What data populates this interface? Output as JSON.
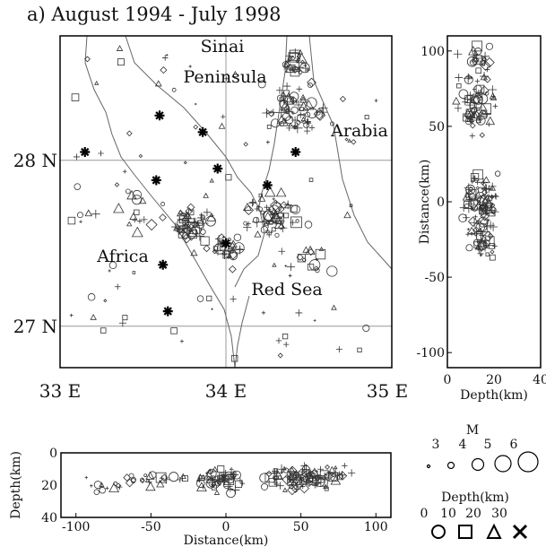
{
  "title": "a) August 1994 - July 1998",
  "chart_data": [
    {
      "type": "scatter",
      "panel": "map",
      "x_ticks": [
        "33 E",
        "34 E",
        "35 E"
      ],
      "y_ticks": [
        "27 N",
        "28 N"
      ],
      "xlim": [
        33.0,
        35.0
      ],
      "ylim": [
        26.75,
        28.75
      ],
      "labels": [
        "Sinai",
        "Peninsula",
        "Arabia",
        "Africa",
        "Red Sea"
      ],
      "stations": [
        {
          "lon": 33.6,
          "lat": 28.27
        },
        {
          "lon": 33.86,
          "lat": 28.17
        },
        {
          "lon": 33.15,
          "lat": 28.05
        },
        {
          "lon": 33.95,
          "lat": 27.95
        },
        {
          "lon": 33.58,
          "lat": 27.88
        },
        {
          "lon": 34.42,
          "lat": 28.05
        },
        {
          "lon": 34.25,
          "lat": 27.85
        },
        {
          "lon": 33.62,
          "lat": 27.37
        },
        {
          "lon": 33.65,
          "lat": 27.09
        },
        {
          "lon": 34.0,
          "lat": 27.5
        }
      ],
      "clusters": [
        {
          "lon": 34.45,
          "lat": 28.3,
          "n": 70,
          "spread": 0.14
        },
        {
          "lon": 34.42,
          "lat": 28.58,
          "n": 30,
          "spread": 0.07
        },
        {
          "lon": 34.28,
          "lat": 27.67,
          "n": 60,
          "spread": 0.12
        },
        {
          "lon": 33.8,
          "lat": 27.62,
          "n": 55,
          "spread": 0.1
        },
        {
          "lon": 34.0,
          "lat": 27.48,
          "n": 30,
          "spread": 0.08
        },
        {
          "lon": 33.45,
          "lat": 27.7,
          "n": 15,
          "spread": 0.15
        },
        {
          "lon": 34.5,
          "lat": 27.4,
          "n": 15,
          "spread": 0.12
        }
      ]
    },
    {
      "type": "scatter",
      "panel": "depth-profile-right",
      "xlabel": "Depth(km)",
      "ylabel": "Distance(km)",
      "x_ticks": [
        "0",
        "20",
        "40"
      ],
      "y_ticks": [
        "-100",
        "-50",
        "0",
        "50",
        "100"
      ],
      "xlim": [
        0,
        40
      ],
      "ylim": [
        -110,
        110
      ],
      "clusters": [
        {
          "x": 13,
          "y": 65,
          "n": 70,
          "sx": 7,
          "sy": 18
        },
        {
          "x": 13,
          "y": 95,
          "n": 20,
          "sx": 5,
          "sy": 8
        },
        {
          "x": 15,
          "y": 0,
          "n": 90,
          "sx": 6,
          "sy": 14
        },
        {
          "x": 15,
          "y": -25,
          "n": 40,
          "sx": 6,
          "sy": 12
        }
      ]
    },
    {
      "type": "scatter",
      "panel": "depth-profile-bottom",
      "xlabel": "Distance(km)",
      "ylabel": "Depth(km)",
      "x_ticks": [
        "-100",
        "-50",
        "0",
        "50",
        "100"
      ],
      "y_ticks": [
        "0",
        "20",
        "40"
      ],
      "xlim": [
        -110,
        110
      ],
      "ylim": [
        0,
        40
      ],
      "clusters": [
        {
          "x": -5,
          "y": 17,
          "n": 60,
          "sx": 12,
          "sy": 6
        },
        {
          "x": 50,
          "y": 16,
          "n": 90,
          "sx": 18,
          "sy": 6
        },
        {
          "x": -50,
          "y": 17,
          "n": 25,
          "sx": 22,
          "sy": 5
        },
        {
          "x": -82,
          "y": 20,
          "n": 10,
          "sx": 8,
          "sy": 4
        },
        {
          "x": 75,
          "y": 14,
          "n": 15,
          "sx": 8,
          "sy": 5
        }
      ]
    }
  ],
  "legend": {
    "magnitude_title": "M",
    "magnitudes": [
      "3",
      "4",
      "5",
      "6"
    ],
    "depth_title": "Depth(km)",
    "depths": [
      "0",
      "10",
      "20",
      "30"
    ],
    "depth_symbols": [
      "circle",
      "square",
      "triangle",
      "cross"
    ]
  }
}
